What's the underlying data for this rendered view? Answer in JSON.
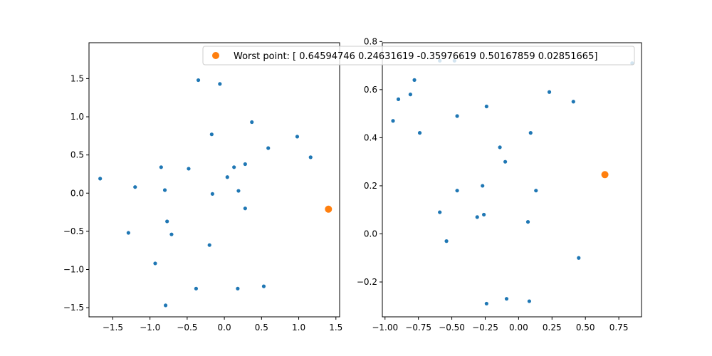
{
  "colors": {
    "series": "#1f77b4",
    "highlight": "#ff7f0e",
    "axes": "#000000",
    "background": "#ffffff"
  },
  "legend": {
    "label": "Worst point: [ 0.64594746  0.24631619 -0.35976619  0.50167859  0.02851665]",
    "placement": "top-center, overlapping both panels",
    "marker_color": "#ff7f0e"
  },
  "chart_data": [
    {
      "type": "scatter",
      "title": "",
      "xlabel": "",
      "ylabel": "",
      "xlim": [
        -1.82,
        1.55
      ],
      "ylim": [
        -1.62,
        1.97
      ],
      "xticks": [
        -1.5,
        -1.0,
        -0.5,
        0.0,
        0.5,
        1.0,
        1.5
      ],
      "xtick_labels": [
        "−1.5",
        "−1.0",
        "−0.5",
        "0.0",
        "0.5",
        "1.0",
        "1.5"
      ],
      "yticks": [
        -1.5,
        -1.0,
        -0.5,
        0.0,
        0.5,
        1.0,
        1.5
      ],
      "ytick_labels": [
        "−1.5",
        "−1.0",
        "−0.5",
        "0.0",
        "0.5",
        "1.0",
        "1.5"
      ],
      "grid": false,
      "series": [
        {
          "color": "#1f77b4",
          "points": [
            [
              -1.67,
              0.19
            ],
            [
              -1.2,
              0.08
            ],
            [
              -0.85,
              0.34
            ],
            [
              -0.48,
              0.32
            ],
            [
              -0.35,
              1.48
            ],
            [
              -0.06,
              1.43
            ],
            [
              0.37,
              0.93
            ],
            [
              -0.17,
              0.77
            ],
            [
              0.98,
              0.74
            ],
            [
              0.59,
              0.59
            ],
            [
              1.16,
              0.47
            ],
            [
              0.28,
              0.38
            ],
            [
              0.13,
              0.34
            ],
            [
              0.04,
              0.21
            ],
            [
              -0.8,
              0.04
            ],
            [
              -0.16,
              -0.01
            ],
            [
              0.19,
              0.03
            ],
            [
              0.28,
              -0.2
            ],
            [
              -1.29,
              -0.52
            ],
            [
              -0.77,
              -0.37
            ],
            [
              -0.71,
              -0.54
            ],
            [
              -0.2,
              -0.68
            ],
            [
              -0.93,
              -0.92
            ],
            [
              -0.38,
              -1.25
            ],
            [
              0.18,
              -1.25
            ],
            [
              0.53,
              -1.22
            ],
            [
              -0.79,
              -1.47
            ]
          ]
        },
        {
          "color": "#ff7f0e",
          "highlight": true,
          "points": [
            [
              1.4,
              -0.21
            ]
          ]
        }
      ]
    },
    {
      "type": "scatter",
      "title": "",
      "xlabel": "",
      "ylabel": "",
      "xlim": [
        -1.02,
        0.92
      ],
      "ylim": [
        -0.345,
        0.795
      ],
      "xticks": [
        -1.0,
        -0.75,
        -0.5,
        -0.25,
        0.0,
        0.25,
        0.5,
        0.75
      ],
      "xtick_labels": [
        "−1.00",
        "−0.75",
        "−0.50",
        "−0.25",
        "0.00",
        "0.25",
        "0.50",
        "0.75"
      ],
      "yticks": [
        -0.2,
        0.0,
        0.2,
        0.4,
        0.6,
        0.8
      ],
      "ytick_labels": [
        "−0.2",
        "0.0",
        "0.2",
        "0.4",
        "0.6",
        "0.8"
      ],
      "grid": false,
      "series": [
        {
          "color": "#1f77b4",
          "points": [
            [
              -0.59,
              0.72
            ],
            [
              -0.48,
              0.72
            ],
            [
              0.85,
              0.71
            ],
            [
              -0.78,
              0.64
            ],
            [
              -0.9,
              0.56
            ],
            [
              -0.81,
              0.58
            ],
            [
              0.23,
              0.59
            ],
            [
              0.41,
              0.55
            ],
            [
              -0.24,
              0.53
            ],
            [
              -0.46,
              0.49
            ],
            [
              -0.94,
              0.47
            ],
            [
              -0.74,
              0.42
            ],
            [
              0.09,
              0.42
            ],
            [
              -0.14,
              0.36
            ],
            [
              -0.1,
              0.3
            ],
            [
              -0.27,
              0.2
            ],
            [
              -0.46,
              0.18
            ],
            [
              0.13,
              0.18
            ],
            [
              -0.59,
              0.09
            ],
            [
              -0.31,
              0.07
            ],
            [
              -0.26,
              0.08
            ],
            [
              0.07,
              0.05
            ],
            [
              -0.54,
              -0.03
            ],
            [
              0.45,
              -0.1
            ],
            [
              -0.09,
              -0.27
            ],
            [
              0.08,
              -0.28
            ],
            [
              -0.24,
              -0.29
            ]
          ]
        },
        {
          "color": "#ff7f0e",
          "highlight": true,
          "points": [
            [
              0.64594746,
              0.24631619
            ]
          ]
        }
      ]
    }
  ]
}
